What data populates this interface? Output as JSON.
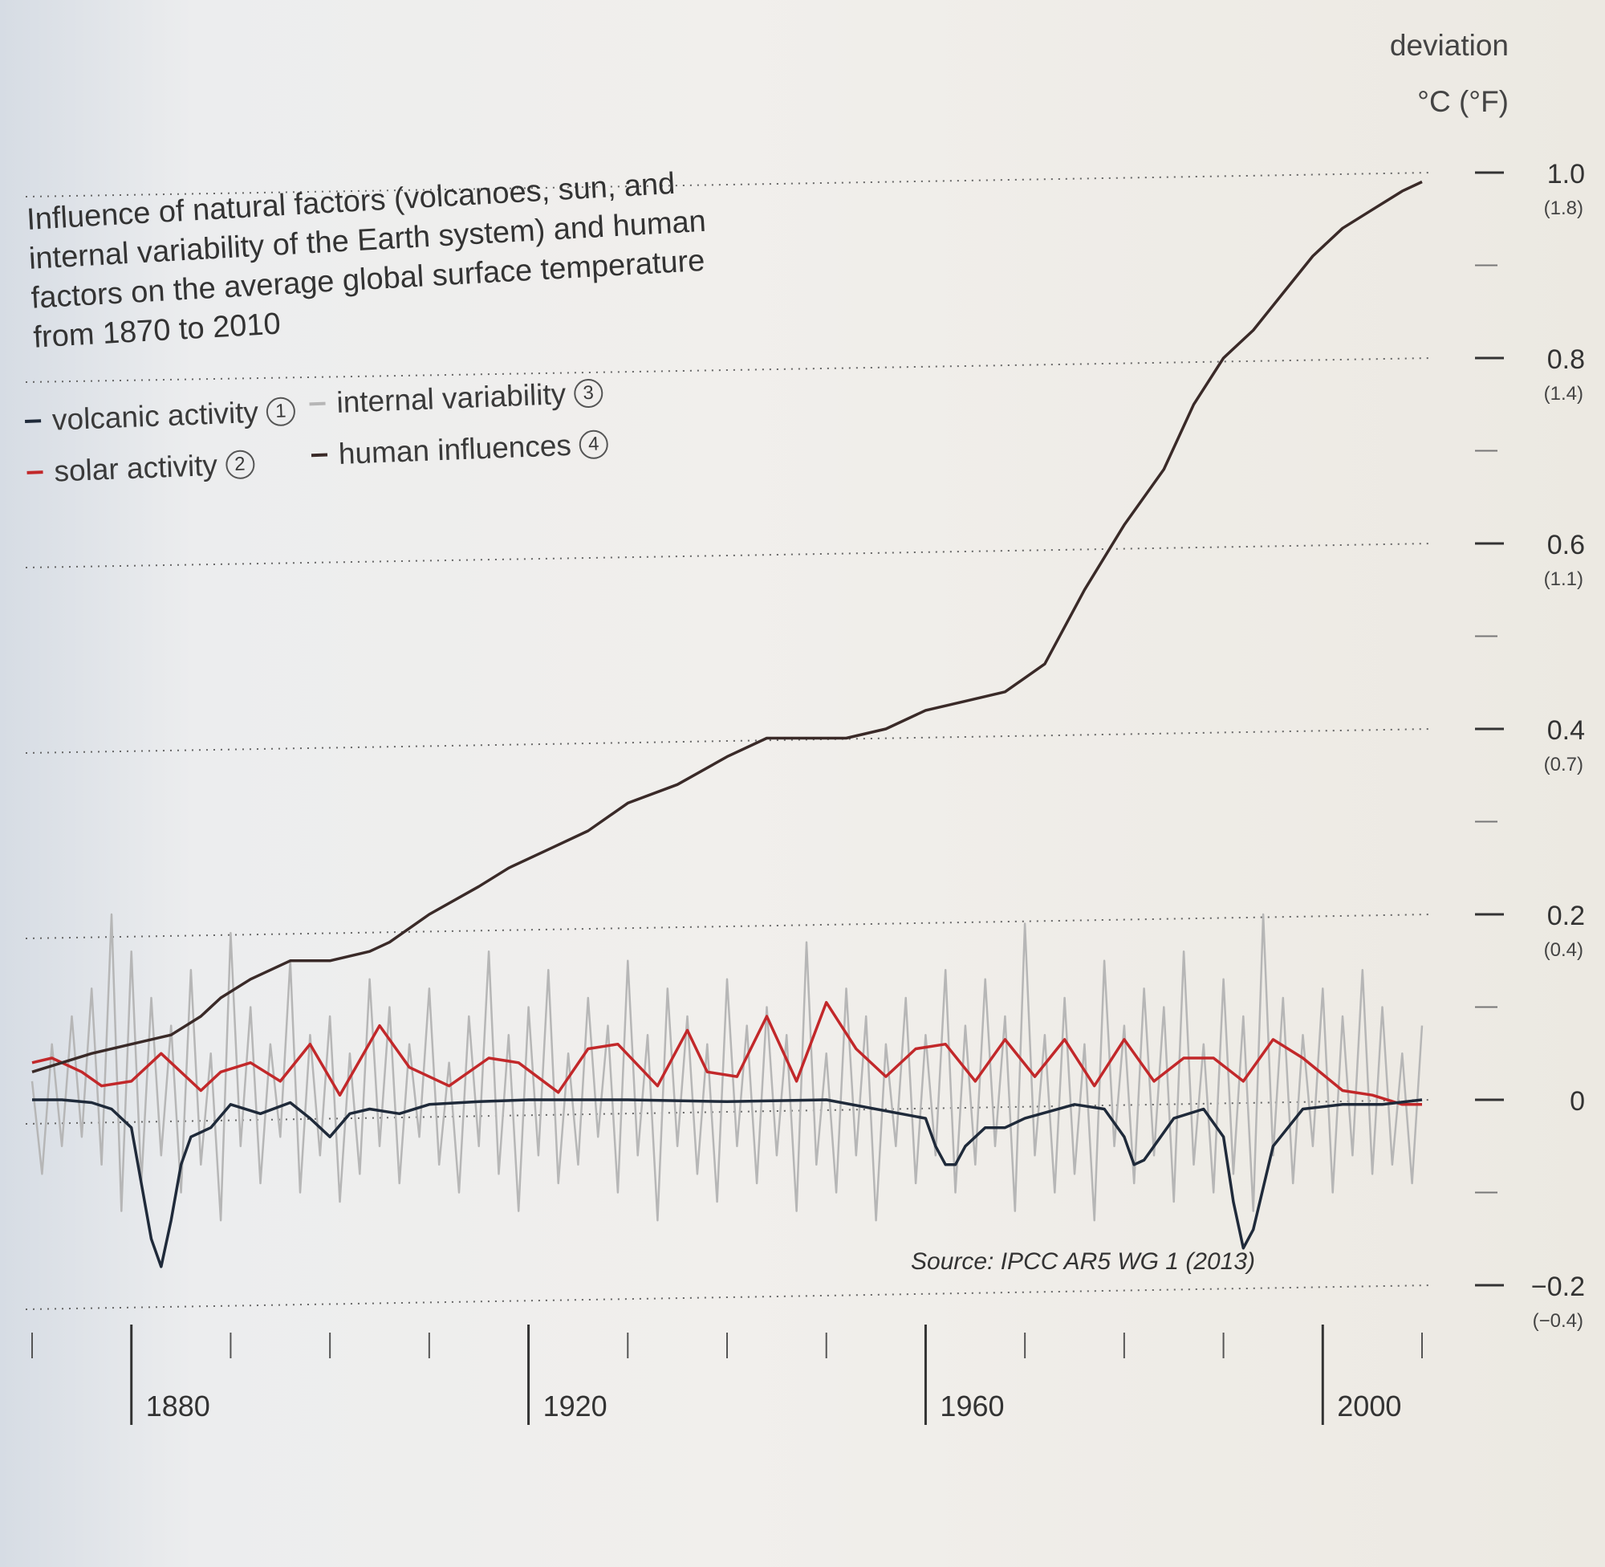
{
  "title": "Influence of natural factors (volcanoes, sun, and internal variability of the Earth system) and human factors on the average global surface temperature from 1870 to 2010",
  "unit_line1": "deviation",
  "unit_line2": "°C (°F)",
  "source": "Source: IPCC AR5 WG 1 (2013)",
  "legend": [
    {
      "label": "volcanic activity",
      "num": "1",
      "color": "#1f2a3a"
    },
    {
      "label": "solar activity",
      "num": "2",
      "color": "#c2282a"
    },
    {
      "label": "internal variability",
      "num": "3",
      "color": "#b6b6b6"
    },
    {
      "label": "human influences",
      "num": "4",
      "color": "#3a2a28"
    }
  ],
  "chart_data": {
    "type": "line",
    "xlim": [
      1870,
      2010
    ],
    "ylim": [
      -0.2,
      1.0
    ],
    "y_ticks": [
      {
        "c": "1.0",
        "f": "(1.8)",
        "v": 1.0
      },
      {
        "c": "0.8",
        "f": "(1.4)",
        "v": 0.8
      },
      {
        "c": "0.6",
        "f": "(1.1)",
        "v": 0.6
      },
      {
        "c": "0.4",
        "f": "(0.7)",
        "v": 0.4
      },
      {
        "c": "0.2",
        "f": "(0.4)",
        "v": 0.2
      },
      {
        "c": "0",
        "f": "",
        "v": 0.0
      },
      {
        "c": "−0.2",
        "f": "(−0.4)",
        "v": -0.2
      }
    ],
    "x_ticks": [
      {
        "label": "1880",
        "v": 1880
      },
      {
        "label": "1920",
        "v": 1920
      },
      {
        "label": "1960",
        "v": 1960
      },
      {
        "label": "2000",
        "v": 2000
      }
    ],
    "series": [
      {
        "name": "human influences",
        "color": "#3a2a28",
        "x": [
          1870,
          1873,
          1876,
          1880,
          1884,
          1887,
          1889,
          1892,
          1896,
          1900,
          1904,
          1906,
          1910,
          1915,
          1918,
          1922,
          1926,
          1930,
          1935,
          1940,
          1944,
          1948,
          1952,
          1956,
          1960,
          1964,
          1968,
          1972,
          1976,
          1980,
          1984,
          1987,
          1990,
          1993,
          1996,
          1999,
          2002,
          2005,
          2008,
          2010
        ],
        "y": [
          0.03,
          0.04,
          0.05,
          0.06,
          0.07,
          0.09,
          0.11,
          0.13,
          0.15,
          0.15,
          0.16,
          0.17,
          0.2,
          0.23,
          0.25,
          0.27,
          0.29,
          0.32,
          0.34,
          0.37,
          0.39,
          0.39,
          0.39,
          0.4,
          0.42,
          0.43,
          0.44,
          0.47,
          0.55,
          0.62,
          0.68,
          0.75,
          0.8,
          0.83,
          0.87,
          0.91,
          0.94,
          0.96,
          0.98,
          0.99
        ]
      },
      {
        "name": "solar activity",
        "color": "#c2282a",
        "x": [
          1870,
          1872,
          1875,
          1877,
          1880,
          1883,
          1887,
          1889,
          1892,
          1895,
          1898,
          1901,
          1905,
          1908,
          1912,
          1916,
          1919,
          1923,
          1926,
          1929,
          1933,
          1936,
          1938,
          1941,
          1944,
          1947,
          1950,
          1953,
          1956,
          1959,
          1962,
          1965,
          1968,
          1971,
          1974,
          1977,
          1980,
          1983,
          1986,
          1989,
          1992,
          1995,
          1998,
          2002,
          2005,
          2008,
          2010
        ],
        "y": [
          0.04,
          0.045,
          0.03,
          0.015,
          0.02,
          0.05,
          0.01,
          0.03,
          0.04,
          0.02,
          0.06,
          0.005,
          0.08,
          0.035,
          0.015,
          0.045,
          0.04,
          0.008,
          0.055,
          0.06,
          0.015,
          0.075,
          0.03,
          0.025,
          0.09,
          0.02,
          0.105,
          0.055,
          0.025,
          0.055,
          0.06,
          0.02,
          0.065,
          0.025,
          0.065,
          0.015,
          0.065,
          0.02,
          0.045,
          0.045,
          0.02,
          0.065,
          0.045,
          0.01,
          0.005,
          -0.005,
          -0.005
        ]
      },
      {
        "name": "volcanic activity",
        "color": "#1f2a3a",
        "x": [
          1870,
          1873,
          1876,
          1878,
          1880,
          1881,
          1882,
          1883,
          1884,
          1885,
          1886,
          1888,
          1890,
          1893,
          1896,
          1898,
          1900,
          1902,
          1904,
          1907,
          1910,
          1915,
          1920,
          1930,
          1940,
          1950,
          1960,
          1961,
          1962,
          1963,
          1964,
          1966,
          1968,
          1970,
          1975,
          1978,
          1980,
          1981,
          1982,
          1983,
          1985,
          1988,
          1990,
          1991,
          1992,
          1993,
          1995,
          1998,
          2002,
          2006,
          2010
        ],
        "y": [
          0.0,
          0.0,
          -0.003,
          -0.01,
          -0.03,
          -0.09,
          -0.15,
          -0.18,
          -0.13,
          -0.07,
          -0.04,
          -0.03,
          -0.005,
          -0.015,
          -0.003,
          -0.02,
          -0.04,
          -0.015,
          -0.01,
          -0.015,
          -0.005,
          -0.002,
          0.0,
          0.0,
          -0.002,
          0.0,
          -0.02,
          -0.05,
          -0.07,
          -0.07,
          -0.05,
          -0.03,
          -0.03,
          -0.02,
          -0.005,
          -0.01,
          -0.04,
          -0.07,
          -0.065,
          -0.05,
          -0.02,
          -0.01,
          -0.04,
          -0.11,
          -0.16,
          -0.14,
          -0.05,
          -0.01,
          -0.005,
          -0.005,
          0.0
        ]
      },
      {
        "name": "internal variability",
        "color": "#b6b6b6",
        "x": [
          1870,
          1871,
          1872,
          1873,
          1874,
          1875,
          1876,
          1877,
          1878,
          1879,
          1880,
          1881,
          1882,
          1883,
          1884,
          1885,
          1886,
          1887,
          1888,
          1889,
          1890,
          1891,
          1892,
          1893,
          1894,
          1895,
          1896,
          1897,
          1898,
          1899,
          1900,
          1901,
          1902,
          1903,
          1904,
          1905,
          1906,
          1907,
          1908,
          1909,
          1910,
          1911,
          1912,
          1913,
          1914,
          1915,
          1916,
          1917,
          1918,
          1919,
          1920,
          1921,
          1922,
          1923,
          1924,
          1925,
          1926,
          1927,
          1928,
          1929,
          1930,
          1931,
          1932,
          1933,
          1934,
          1935,
          1936,
          1937,
          1938,
          1939,
          1940,
          1941,
          1942,
          1943,
          1944,
          1945,
          1946,
          1947,
          1948,
          1949,
          1950,
          1951,
          1952,
          1953,
          1954,
          1955,
          1956,
          1957,
          1958,
          1959,
          1960,
          1961,
          1962,
          1963,
          1964,
          1965,
          1966,
          1967,
          1968,
          1969,
          1970,
          1971,
          1972,
          1973,
          1974,
          1975,
          1976,
          1977,
          1978,
          1979,
          1980,
          1981,
          1982,
          1983,
          1984,
          1985,
          1986,
          1987,
          1988,
          1989,
          1990,
          1991,
          1992,
          1993,
          1994,
          1995,
          1996,
          1997,
          1998,
          1999,
          2000,
          2001,
          2002,
          2003,
          2004,
          2005,
          2006,
          2007,
          2008,
          2009,
          2010
        ],
        "y": [
          0.02,
          -0.08,
          0.06,
          -0.05,
          0.09,
          -0.04,
          0.12,
          -0.07,
          0.2,
          -0.12,
          0.16,
          -0.09,
          0.11,
          -0.06,
          0.08,
          -0.1,
          0.14,
          -0.07,
          0.05,
          -0.13,
          0.18,
          -0.05,
          0.1,
          -0.09,
          0.06,
          -0.04,
          0.15,
          -0.1,
          0.07,
          -0.06,
          0.09,
          -0.11,
          0.05,
          -0.08,
          0.13,
          -0.05,
          0.1,
          -0.09,
          0.06,
          -0.04,
          0.12,
          -0.07,
          0.04,
          -0.1,
          0.09,
          -0.05,
          0.16,
          -0.08,
          0.07,
          -0.12,
          0.1,
          -0.06,
          0.14,
          -0.09,
          0.05,
          -0.07,
          0.11,
          -0.04,
          0.08,
          -0.1,
          0.15,
          -0.06,
          0.07,
          -0.13,
          0.12,
          -0.05,
          0.09,
          -0.08,
          0.06,
          -0.11,
          0.13,
          -0.05,
          0.08,
          -0.09,
          0.1,
          -0.06,
          0.07,
          -0.12,
          0.17,
          -0.07,
          0.05,
          -0.1,
          0.12,
          -0.06,
          0.09,
          -0.13,
          0.06,
          -0.05,
          0.11,
          -0.09,
          0.07,
          -0.06,
          0.14,
          -0.1,
          0.08,
          -0.07,
          0.13,
          -0.05,
          0.09,
          -0.12,
          0.19,
          -0.06,
          0.07,
          -0.1,
          0.11,
          -0.08,
          0.06,
          -0.13,
          0.15,
          -0.05,
          0.08,
          -0.09,
          0.12,
          -0.06,
          0.1,
          -0.11,
          0.16,
          -0.07,
          0.06,
          -0.1,
          0.13,
          -0.08,
          0.09,
          -0.12,
          0.2,
          -0.06,
          0.11,
          -0.09,
          0.07,
          -0.05,
          0.12,
          -0.1,
          0.09,
          -0.06,
          0.14,
          -0.08,
          0.1,
          -0.07,
          0.05,
          -0.09,
          0.08
        ]
      }
    ]
  }
}
